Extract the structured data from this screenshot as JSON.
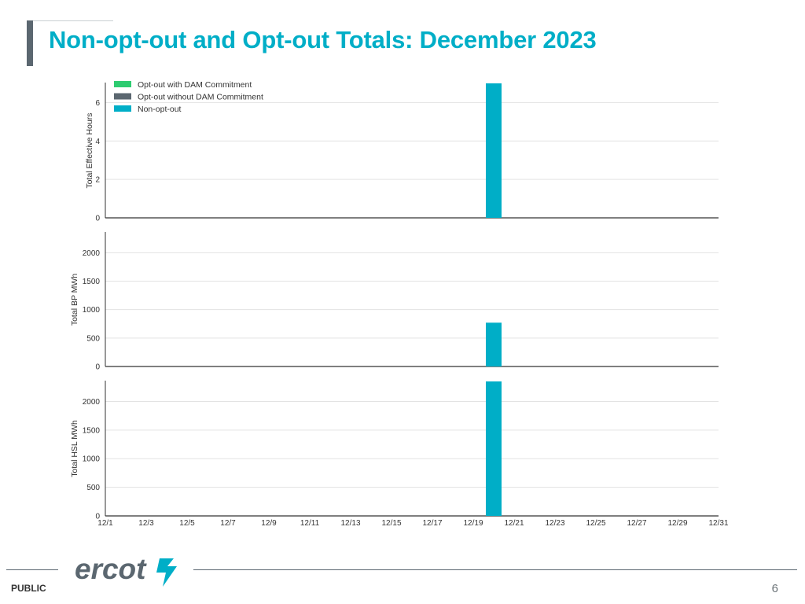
{
  "slide": {
    "title": "Non-opt-out and Opt-out Totals: December 2023",
    "footer_label": "PUBLIC",
    "page_number": "6",
    "logo_text": "ercot"
  },
  "colors": {
    "title": "#00aec7",
    "opt_out_with_dam": "#2ecc71",
    "opt_out_without_dam": "#5b6770",
    "non_opt_out": "#00aec7"
  },
  "chart_data": [
    {
      "type": "bar",
      "ylabel": "Total Effective Hours",
      "ylim": [
        0,
        7
      ],
      "yticks": [
        0,
        2,
        4,
        6
      ],
      "x": [
        "12/1",
        "12/2",
        "12/3",
        "12/4",
        "12/5",
        "12/6",
        "12/7",
        "12/8",
        "12/9",
        "12/10",
        "12/11",
        "12/12",
        "12/13",
        "12/14",
        "12/15",
        "12/16",
        "12/17",
        "12/18",
        "12/19",
        "12/20",
        "12/21",
        "12/22",
        "12/23",
        "12/24",
        "12/25",
        "12/26",
        "12/27",
        "12/28",
        "12/29",
        "12/30",
        "12/31"
      ],
      "series": [
        {
          "name": "Opt-out with DAM Commitment",
          "color": "#2ecc71",
          "values": [
            0,
            0,
            0,
            0,
            0,
            0,
            0,
            0,
            0,
            0,
            0,
            0,
            0,
            0,
            0,
            0,
            0,
            0,
            0,
            0,
            0,
            0,
            0,
            0,
            0,
            0,
            0,
            0,
            0,
            0,
            0
          ]
        },
        {
          "name": "Opt-out without DAM Commitment",
          "color": "#5b6770",
          "values": [
            0,
            0,
            0,
            0,
            0,
            0,
            0,
            0,
            0,
            0,
            0,
            0,
            0,
            0,
            0,
            0,
            0,
            0,
            0,
            0,
            0,
            0,
            0,
            0,
            0,
            0,
            0,
            0,
            0,
            0,
            0
          ]
        },
        {
          "name": "Non-opt-out",
          "color": "#00aec7",
          "values": [
            0,
            0,
            0,
            0,
            0,
            0,
            0,
            0,
            0,
            0,
            0,
            0,
            0,
            0,
            0,
            0,
            0,
            0,
            0,
            7,
            0,
            0,
            0,
            0,
            0,
            0,
            0,
            0,
            0,
            0,
            0
          ]
        }
      ],
      "legend": "top-left",
      "grid": true
    },
    {
      "type": "bar",
      "ylabel": "Total BP MWh",
      "ylim": [
        0,
        2350
      ],
      "yticks": [
        0,
        500,
        1000,
        1500,
        2000
      ],
      "x": [
        "12/1",
        "12/2",
        "12/3",
        "12/4",
        "12/5",
        "12/6",
        "12/7",
        "12/8",
        "12/9",
        "12/10",
        "12/11",
        "12/12",
        "12/13",
        "12/14",
        "12/15",
        "12/16",
        "12/17",
        "12/18",
        "12/19",
        "12/20",
        "12/21",
        "12/22",
        "12/23",
        "12/24",
        "12/25",
        "12/26",
        "12/27",
        "12/28",
        "12/29",
        "12/30",
        "12/31"
      ],
      "series": [
        {
          "name": "Non-opt-out",
          "color": "#00aec7",
          "values": [
            0,
            0,
            0,
            0,
            0,
            0,
            0,
            0,
            0,
            0,
            0,
            0,
            0,
            0,
            0,
            0,
            0,
            0,
            0,
            770,
            0,
            0,
            0,
            0,
            0,
            0,
            0,
            0,
            0,
            0,
            0
          ]
        }
      ],
      "grid": true
    },
    {
      "type": "bar",
      "ylabel": "Total HSL MWh",
      "ylim": [
        0,
        2350
      ],
      "yticks": [
        0,
        500,
        1000,
        1500,
        2000
      ],
      "x": [
        "12/1",
        "12/2",
        "12/3",
        "12/4",
        "12/5",
        "12/6",
        "12/7",
        "12/8",
        "12/9",
        "12/10",
        "12/11",
        "12/12",
        "12/13",
        "12/14",
        "12/15",
        "12/16",
        "12/17",
        "12/18",
        "12/19",
        "12/20",
        "12/21",
        "12/22",
        "12/23",
        "12/24",
        "12/25",
        "12/26",
        "12/27",
        "12/28",
        "12/29",
        "12/30",
        "12/31"
      ],
      "xticks": [
        "12/1",
        "12/3",
        "12/5",
        "12/7",
        "12/9",
        "12/11",
        "12/13",
        "12/15",
        "12/17",
        "12/19",
        "12/21",
        "12/23",
        "12/25",
        "12/27",
        "12/29",
        "12/31"
      ],
      "series": [
        {
          "name": "Non-opt-out",
          "color": "#00aec7",
          "values": [
            0,
            0,
            0,
            0,
            0,
            0,
            0,
            0,
            0,
            0,
            0,
            0,
            0,
            0,
            0,
            0,
            0,
            0,
            0,
            2350,
            0,
            0,
            0,
            0,
            0,
            0,
            0,
            0,
            0,
            0,
            0
          ]
        }
      ],
      "grid": true
    }
  ]
}
